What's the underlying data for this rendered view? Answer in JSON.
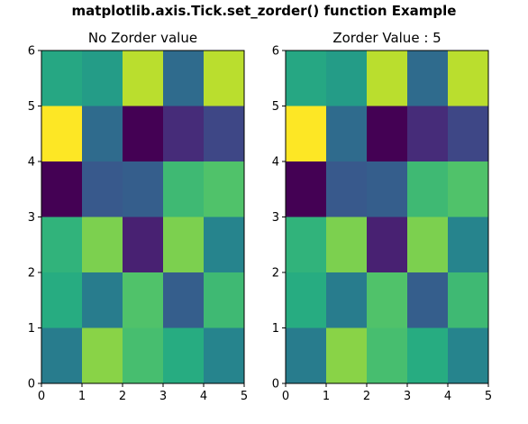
{
  "figure": {
    "suptitle": "matplotlib.axis.Tick.set_zorder() function Example"
  },
  "chart_data": [
    {
      "type": "heatmap",
      "title": "No Zorder value",
      "xlabel": "",
      "ylabel": "",
      "colormap": "viridis",
      "xlim": [
        0,
        5
      ],
      "ylim": [
        0,
        6
      ],
      "xticks": [
        "0",
        "1",
        "2",
        "3",
        "4",
        "5"
      ],
      "yticks": [
        "0",
        "1",
        "2",
        "3",
        "4",
        "5",
        "6"
      ],
      "grid": false,
      "rows_top_to_bottom": [
        [
          0.6,
          0.55,
          0.9,
          0.35,
          0.9
        ],
        [
          1.0,
          0.35,
          0.0,
          0.15,
          0.22
        ],
        [
          0.0,
          0.28,
          0.3,
          0.68,
          0.72
        ],
        [
          0.65,
          0.8,
          0.12,
          0.8,
          0.45
        ],
        [
          0.62,
          0.42,
          0.72,
          0.3,
          0.68
        ],
        [
          0.42,
          0.82,
          0.7,
          0.62,
          0.45
        ]
      ]
    },
    {
      "type": "heatmap",
      "title": "Zorder Value : 5",
      "xlabel": "",
      "ylabel": "",
      "colormap": "viridis",
      "xlim": [
        0,
        5
      ],
      "ylim": [
        0,
        6
      ],
      "xticks": [
        "0",
        "1",
        "2",
        "3",
        "4",
        "5"
      ],
      "yticks": [
        "0",
        "1",
        "2",
        "3",
        "4",
        "5",
        "6"
      ],
      "grid": false,
      "rows_top_to_bottom": [
        [
          0.6,
          0.55,
          0.9,
          0.35,
          0.9
        ],
        [
          1.0,
          0.35,
          0.0,
          0.15,
          0.22
        ],
        [
          0.0,
          0.28,
          0.3,
          0.68,
          0.72
        ],
        [
          0.65,
          0.8,
          0.12,
          0.8,
          0.45
        ],
        [
          0.62,
          0.42,
          0.72,
          0.3,
          0.68
        ],
        [
          0.42,
          0.82,
          0.7,
          0.62,
          0.45
        ]
      ]
    }
  ]
}
